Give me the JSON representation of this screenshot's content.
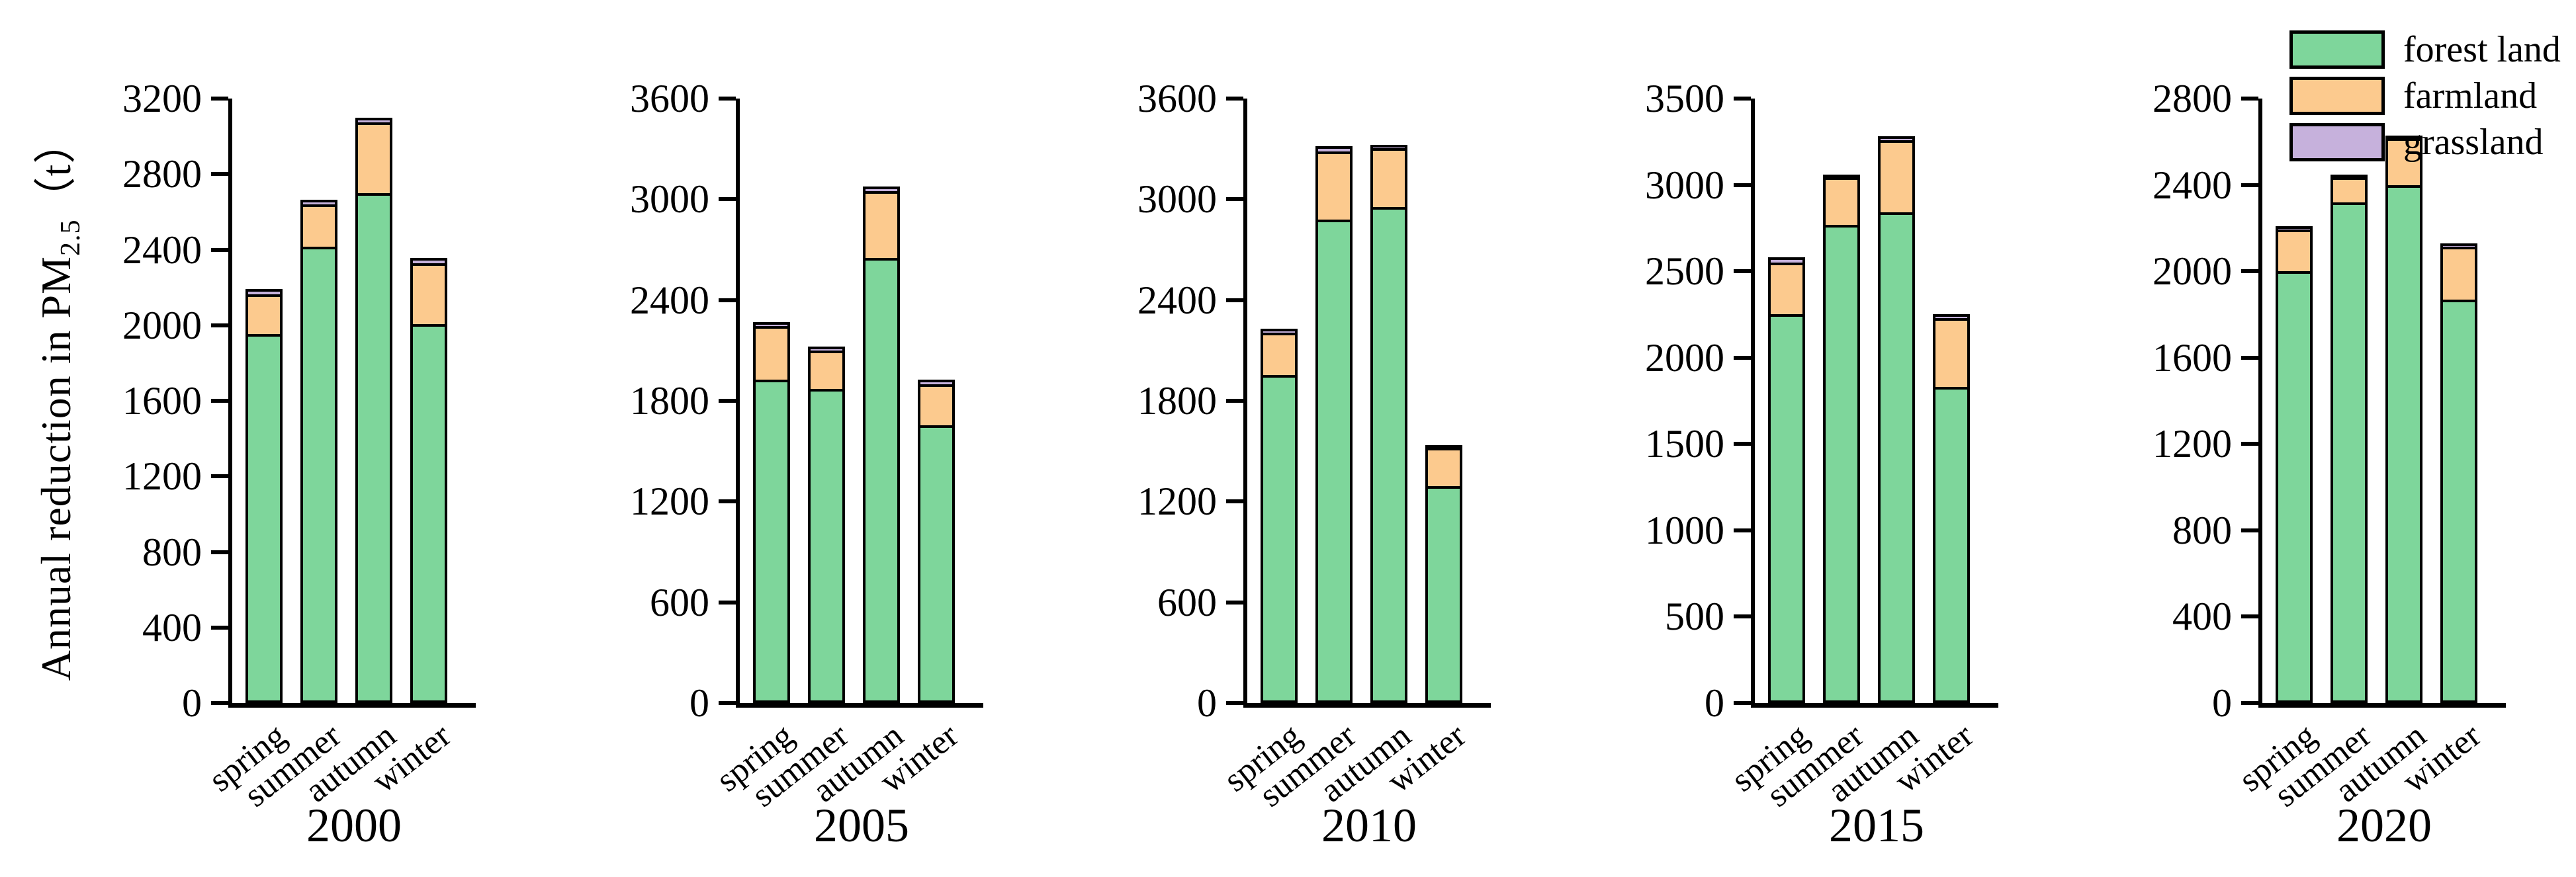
{
  "figure": {
    "ylabel": {
      "prefix": "Annual reduction in PM",
      "sub": "2.5",
      "suffix": "（t）"
    }
  },
  "chart_data": {
    "type": "bar",
    "stacked": true,
    "grid": false,
    "legend_position": "top-right",
    "categories": [
      "spring",
      "summer",
      "autumn",
      "winter"
    ],
    "series_names": [
      "forest land",
      "farmland",
      "grassland"
    ],
    "series_colors": {
      "forest land": "#7ed69b",
      "farmland": "#fcca8e",
      "grassland": "#c6b1dc"
    },
    "ylabel": "Annual reduction in PM2.5 (t)",
    "panels": [
      {
        "year": "2000",
        "ylim": [
          0,
          3200
        ],
        "ytick_step": 400,
        "series": [
          {
            "name": "forest land",
            "values": [
              1955,
              2415,
              2700,
              2005
            ]
          },
          {
            "name": "farmland",
            "values": [
              210,
              225,
              375,
              325
            ]
          },
          {
            "name": "grassland",
            "values": [
              25,
              25,
              25,
              25
            ]
          }
        ]
      },
      {
        "year": "2005",
        "ylim": [
          0,
          3600
        ],
        "ytick_step": 600,
        "series": [
          {
            "name": "forest land",
            "values": [
              1925,
              1870,
              2650,
              1655
            ]
          },
          {
            "name": "farmland",
            "values": [
              320,
              230,
              400,
              245
            ]
          },
          {
            "name": "grassland",
            "values": [
              25,
              25,
              25,
              25
            ]
          }
        ]
      },
      {
        "year": "2010",
        "ylim": [
          0,
          3600
        ],
        "ytick_step": 600,
        "series": [
          {
            "name": "forest land",
            "values": [
              1955,
              2880,
              2955,
              1290
            ]
          },
          {
            "name": "farmland",
            "values": [
              250,
              405,
              350,
              230
            ]
          },
          {
            "name": "grassland",
            "values": [
              25,
              30,
              20,
              15
            ]
          }
        ]
      },
      {
        "year": "2015",
        "ylim": [
          0,
          3500
        ],
        "ytick_step": 500,
        "series": [
          {
            "name": "forest land",
            "values": [
              2250,
              2770,
              2840,
              1830
            ]
          },
          {
            "name": "farmland",
            "values": [
              300,
              275,
              420,
              400
            ]
          },
          {
            "name": "grassland",
            "values": [
              30,
              10,
              20,
              20
            ]
          }
        ]
      },
      {
        "year": "2020",
        "ylim": [
          0,
          2800
        ],
        "ytick_step": 400,
        "series": [
          {
            "name": "forest land",
            "values": [
              2000,
              2320,
              2400,
              1870
            ]
          },
          {
            "name": "farmland",
            "values": [
              195,
              115,
              215,
              245
            ]
          },
          {
            "name": "grassland",
            "values": [
              15,
              10,
              15,
              15
            ]
          }
        ]
      }
    ]
  }
}
